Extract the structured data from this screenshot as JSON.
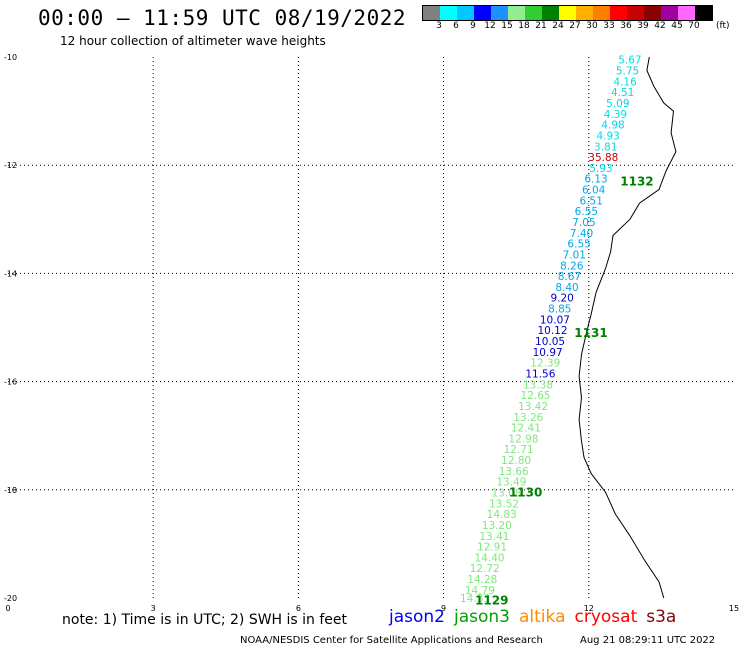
{
  "header": {
    "title": "00:00 – 11:59 UTC 08/19/2022",
    "subtitle": "12 hour collection of altimeter wave heights"
  },
  "legend": {
    "unit": "(ft)",
    "labels": [
      "3",
      "6",
      "9",
      "12",
      "15",
      "18",
      "21",
      "24",
      "27",
      "30",
      "33",
      "36",
      "39",
      "42",
      "45",
      "70"
    ],
    "colors": [
      "#808080",
      "#00ffff",
      "#00c8ff",
      "#0000ff",
      "#1e90ff",
      "#90ee90",
      "#32cd32",
      "#008000",
      "#ffff00",
      "#ffb000",
      "#ff8000",
      "#ff0000",
      "#c80000",
      "#8b0000",
      "#a000a0",
      "#ff66ff",
      "#000000"
    ]
  },
  "map": {
    "x_ticks": [
      "0",
      "3",
      "6",
      "9",
      "12",
      "15"
    ],
    "y_ticks": [
      "-10",
      "-12",
      "-14",
      "-16",
      "-18",
      "-20"
    ],
    "lon_range": [
      0,
      15
    ],
    "lat_range": [
      -20,
      -10
    ],
    "measurements": [
      {
        "value": "5.67",
        "lon": 12.85,
        "lat": -10.05,
        "color": "#00e0e0"
      },
      {
        "value": "5.75",
        "lon": 12.8,
        "lat": -10.25,
        "color": "#00d8e8"
      },
      {
        "value": "4.16",
        "lon": 12.75,
        "lat": -10.45,
        "color": "#00e0e0"
      },
      {
        "value": "4.51",
        "lon": 12.7,
        "lat": -10.65,
        "color": "#00e0e0"
      },
      {
        "value": "5.09",
        "lon": 12.6,
        "lat": -10.85,
        "color": "#00d8e8"
      },
      {
        "value": "4.39",
        "lon": 12.55,
        "lat": -11.05,
        "color": "#00e0e0"
      },
      {
        "value": "4.98",
        "lon": 12.5,
        "lat": -11.25,
        "color": "#00d8e8"
      },
      {
        "value": "4.93",
        "lon": 12.4,
        "lat": -11.45,
        "color": "#00d8e8"
      },
      {
        "value": "3.81",
        "lon": 12.35,
        "lat": -11.65,
        "color": "#00e0e0"
      },
      {
        "value": "35.88",
        "lon": 12.3,
        "lat": -11.85,
        "color": "#cc0000"
      },
      {
        "value": "5.93",
        "lon": 12.25,
        "lat": -12.05,
        "color": "#00d8e8"
      },
      {
        "value": "6.13",
        "lon": 12.15,
        "lat": -12.25,
        "color": "#00a8e8"
      },
      {
        "value": "6.04",
        "lon": 12.1,
        "lat": -12.45,
        "color": "#00a8e8"
      },
      {
        "value": "6.51",
        "lon": 12.05,
        "lat": -12.65,
        "color": "#00a8e8"
      },
      {
        "value": "6.55",
        "lon": 11.95,
        "lat": -12.85,
        "color": "#00a8e8"
      },
      {
        "value": "7.05",
        "lon": 11.9,
        "lat": -13.05,
        "color": "#00a8e8"
      },
      {
        "value": "7.40",
        "lon": 11.85,
        "lat": -13.25,
        "color": "#00a8e8"
      },
      {
        "value": "6.55",
        "lon": 11.8,
        "lat": -13.45,
        "color": "#00a8e8"
      },
      {
        "value": "7.01",
        "lon": 11.7,
        "lat": -13.65,
        "color": "#00a8e8"
      },
      {
        "value": "8.26",
        "lon": 11.65,
        "lat": -13.85,
        "color": "#00a8e8"
      },
      {
        "value": "8.67",
        "lon": 11.6,
        "lat": -14.05,
        "color": "#00a8e8"
      },
      {
        "value": "8.40",
        "lon": 11.55,
        "lat": -14.25,
        "color": "#00a8e8"
      },
      {
        "value": "9.20",
        "lon": 11.45,
        "lat": -14.45,
        "color": "#0000c8"
      },
      {
        "value": "8.85",
        "lon": 11.4,
        "lat": -14.65,
        "color": "#00a8e8"
      },
      {
        "value": "10.07",
        "lon": 11.3,
        "lat": -14.85,
        "color": "#0000c8"
      },
      {
        "value": "10.12",
        "lon": 11.25,
        "lat": -15.05,
        "color": "#0000c8"
      },
      {
        "value": "10.05",
        "lon": 11.2,
        "lat": -15.25,
        "color": "#0000c8"
      },
      {
        "value": "10.97",
        "lon": 11.15,
        "lat": -15.45,
        "color": "#0000c8"
      },
      {
        "value": "12.39",
        "lon": 11.1,
        "lat": -15.65,
        "color": "#7ee87e"
      },
      {
        "value": "11.56",
        "lon": 11.0,
        "lat": -15.85,
        "color": "#0000c8"
      },
      {
        "value": "13.38",
        "lon": 10.95,
        "lat": -16.05,
        "color": "#7ee87e"
      },
      {
        "value": "12.65",
        "lon": 10.9,
        "lat": -16.25,
        "color": "#7ee87e"
      },
      {
        "value": "13.42",
        "lon": 10.85,
        "lat": -16.45,
        "color": "#7ee87e"
      },
      {
        "value": "13.26",
        "lon": 10.75,
        "lat": -16.65,
        "color": "#7ee87e"
      },
      {
        "value": "12.41",
        "lon": 10.7,
        "lat": -16.85,
        "color": "#7ee87e"
      },
      {
        "value": "12.98",
        "lon": 10.65,
        "lat": -17.05,
        "color": "#7ee87e"
      },
      {
        "value": "12.71",
        "lon": 10.55,
        "lat": -17.25,
        "color": "#7ee87e"
      },
      {
        "value": "12.80",
        "lon": 10.5,
        "lat": -17.45,
        "color": "#7ee87e"
      },
      {
        "value": "13.66",
        "lon": 10.45,
        "lat": -17.65,
        "color": "#7ee87e"
      },
      {
        "value": "13.49",
        "lon": 10.4,
        "lat": -17.85,
        "color": "#7ee87e"
      },
      {
        "value": "13.08",
        "lon": 10.3,
        "lat": -18.05,
        "color": "#7ee87e"
      },
      {
        "value": "13.52",
        "lon": 10.25,
        "lat": -18.25,
        "color": "#7ee87e"
      },
      {
        "value": "14.83",
        "lon": 10.2,
        "lat": -18.45,
        "color": "#7ee87e"
      },
      {
        "value": "13.20",
        "lon": 10.1,
        "lat": -18.65,
        "color": "#7ee87e"
      },
      {
        "value": "13.41",
        "lon": 10.05,
        "lat": -18.85,
        "color": "#7ee87e"
      },
      {
        "value": "12.91",
        "lon": 10.0,
        "lat": -19.05,
        "color": "#7ee87e"
      },
      {
        "value": "14.40",
        "lon": 9.95,
        "lat": -19.25,
        "color": "#7ee87e"
      },
      {
        "value": "12.72",
        "lon": 9.85,
        "lat": -19.45,
        "color": "#7ee87e"
      },
      {
        "value": "14.28",
        "lon": 9.8,
        "lat": -19.65,
        "color": "#7ee87e"
      },
      {
        "value": "14.79",
        "lon": 9.75,
        "lat": -19.85,
        "color": "#7ee87e"
      },
      {
        "value": "14.33",
        "lon": 9.65,
        "lat": -20.0,
        "color": "#7ee87e"
      }
    ],
    "pass_labels": [
      {
        "value": "1132",
        "lon": 12.65,
        "lat": -12.3
      },
      {
        "value": "1131",
        "lon": 11.7,
        "lat": -15.1
      },
      {
        "value": "1130",
        "lon": 10.35,
        "lat": -18.05
      },
      {
        "value": "1129",
        "lon": 9.65,
        "lat": -20.05
      }
    ],
    "coastline": [
      [
        13.25,
        -10.0
      ],
      [
        13.2,
        -10.25
      ],
      [
        13.35,
        -10.55
      ],
      [
        13.55,
        -10.85
      ],
      [
        13.75,
        -11.0
      ],
      [
        13.7,
        -11.4
      ],
      [
        13.8,
        -11.75
      ],
      [
        13.6,
        -12.1
      ],
      [
        13.45,
        -12.45
      ],
      [
        13.05,
        -12.7
      ],
      [
        12.85,
        -13.0
      ],
      [
        12.5,
        -13.3
      ],
      [
        12.45,
        -13.6
      ],
      [
        12.35,
        -13.9
      ],
      [
        12.15,
        -14.35
      ],
      [
        12.05,
        -14.75
      ],
      [
        11.95,
        -15.1
      ],
      [
        11.85,
        -15.5
      ],
      [
        11.8,
        -15.9
      ],
      [
        11.85,
        -16.3
      ],
      [
        11.8,
        -16.7
      ],
      [
        11.85,
        -17.1
      ],
      [
        11.9,
        -17.4
      ],
      [
        12.05,
        -17.7
      ],
      [
        12.35,
        -18.05
      ],
      [
        12.55,
        -18.45
      ],
      [
        12.85,
        -18.85
      ],
      [
        13.15,
        -19.3
      ],
      [
        13.45,
        -19.7
      ],
      [
        13.55,
        -20.0
      ]
    ]
  },
  "footer": {
    "note": "note:  1) Time is in UTC;  2) SWH is in feet",
    "satellites": [
      {
        "name": "jason2",
        "color": "#0000ff"
      },
      {
        "name": "jason3",
        "color": "#00a000"
      },
      {
        "name": "altika",
        "color": "#ff8c00"
      },
      {
        "name": "cryosat",
        "color": "#ff0000"
      },
      {
        "name": "s3a",
        "color": "#8b0000"
      }
    ],
    "credit": "NOAA/NESDIS Center for Satellite Applications and Research",
    "generated": "Aug 21 08:29:11 UTC 2022"
  }
}
